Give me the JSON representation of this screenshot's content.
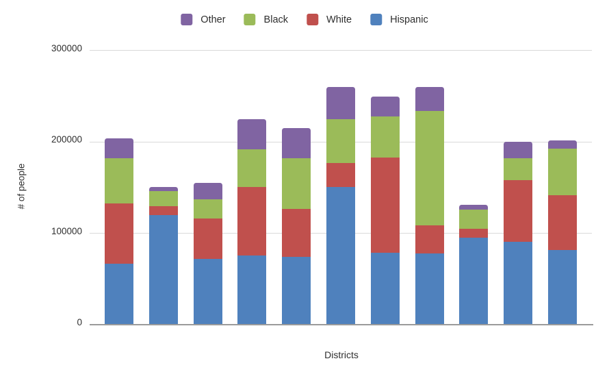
{
  "chart_data": {
    "type": "bar",
    "stacked": true,
    "title": "",
    "xlabel": "Districts",
    "ylabel": "# of people",
    "ylim": [
      0,
      300000
    ],
    "y_ticks": [
      0,
      100000,
      200000,
      300000
    ],
    "y_tick_labels": [
      "300000",
      "200000",
      "100000",
      "0"
    ],
    "grid": true,
    "num_bars": 11,
    "x_tick_labels": [],
    "legend": [
      "Other",
      "Black",
      "White",
      "Hispanic"
    ],
    "legend_position": "top",
    "series": [
      {
        "name": "Hispanic",
        "color": "#4F81BD",
        "values": [
          67000,
          120000,
          72000,
          76000,
          74000,
          151000,
          79000,
          78000,
          95000,
          91000,
          82000
        ]
      },
      {
        "name": "White",
        "color": "#C0504D",
        "values": [
          66000,
          10000,
          44000,
          75000,
          53000,
          26000,
          104000,
          31000,
          10000,
          67000,
          60000
        ]
      },
      {
        "name": "Black",
        "color": "#9BBB59",
        "values": [
          49000,
          16000,
          21000,
          41000,
          55000,
          48000,
          45000,
          125000,
          21000,
          24000,
          51000
        ]
      },
      {
        "name": "Other",
        "color": "#8064A2",
        "values": [
          22000,
          5000,
          18000,
          33000,
          33000,
          35000,
          22000,
          26000,
          5000,
          18000,
          9000
        ]
      }
    ]
  },
  "colors": {
    "gridline": "#D9D9D9",
    "axis_line": "#9B9B9B",
    "text": "#2E2E2E"
  }
}
